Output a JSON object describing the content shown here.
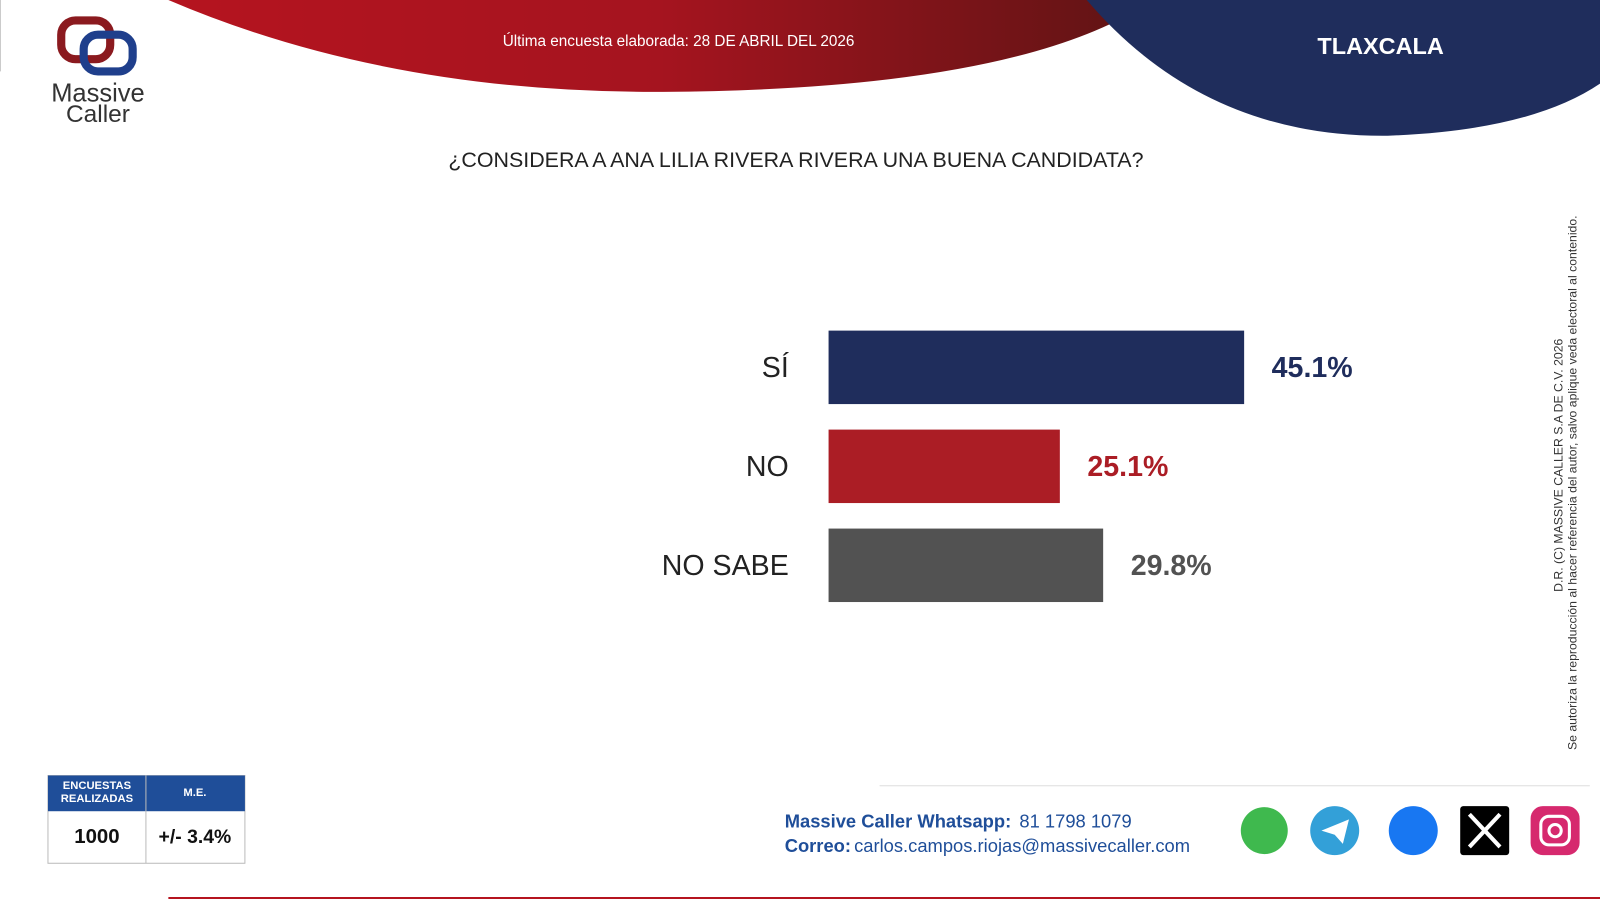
{
  "header": {
    "date_note": "Última encuesta elaborada: 28 DE ABRIL DEL 2026",
    "region": "TLAXCALA",
    "logo_top": "Massive",
    "logo_bottom": "Caller"
  },
  "chart_data": {
    "type": "hbar",
    "title": "¿CONSIDERA A ANA LILIA RIVERA RIVERA UNA BUENA CANDIDATA?",
    "categories": [
      "SÍ",
      "NO",
      "NO SABE"
    ],
    "values": [
      45.1,
      25.1,
      29.8
    ],
    "value_labels": [
      "45.1%",
      "25.1%",
      "29.8%"
    ],
    "colors": [
      "#1f2d5c",
      "#ab1d25",
      "#525252"
    ]
  },
  "stats": {
    "headers": [
      "ENCUESTAS REALIZADAS",
      "M.E."
    ],
    "values": [
      "1000",
      "+/- 3.4%"
    ]
  },
  "contact": {
    "whatsapp_label": "Massive Caller Whatsapp:",
    "whatsapp": "81 1798 1079",
    "email_label": "Correo:",
    "email": "carlos.campos.riojas@massivecaller.com"
  },
  "copyright": [
    "D.R. (C) MASSIVE CALLER S.A DE C.V. 2026",
    "Se autoriza la reproducción al hacer referencia del autor, salvo aplique veda electoral al contenido."
  ]
}
